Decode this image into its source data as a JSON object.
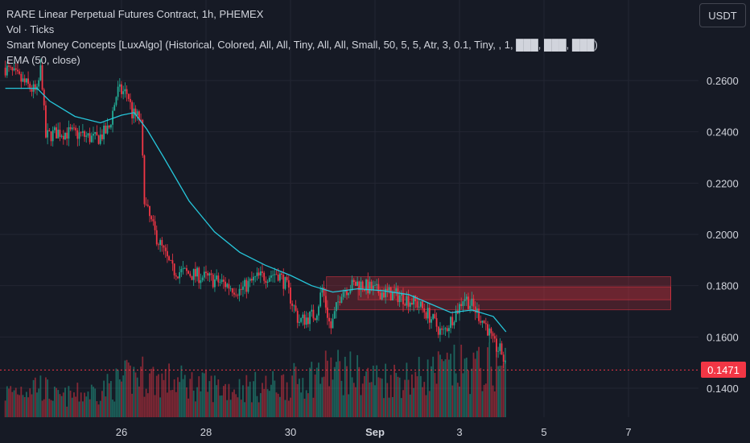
{
  "legend": {
    "title": "RARE Linear Perpetual Futures Contract, 1h, PHEMEX",
    "volume": "Vol · Ticks",
    "smc": "Smart Money Concepts [LuxAlgo] (Historical, Colored, All, All, Tiny, All, All, Small, 50, 5, 5, Atr, 3, 0.1, Tiny, , 1, ███, ███, ███)",
    "ema": "EMA (50, close)"
  },
  "currency_button": "USDT",
  "last_price_label": "0.1471",
  "colors": {
    "background": "#161a25",
    "up": "#22ab94",
    "down": "#f23645",
    "ema": "#26c6da",
    "zone_fill": "#f2364550",
    "grid": "#232632"
  },
  "chart_data": {
    "type": "candlestick",
    "symbol": "RARE Linear Perpetual Futures Contract",
    "interval": "1h",
    "exchange": "PHEMEX",
    "ylim": [
      0.128,
      0.284
    ],
    "yticks": [
      "0.2600",
      "0.2400",
      "0.2200",
      "0.2000",
      "0.1800",
      "0.1600",
      "0.1400"
    ],
    "xticks": [
      {
        "label": "26",
        "day": 26
      },
      {
        "label": "28",
        "day": 28
      },
      {
        "label": "30",
        "day": 30
      },
      {
        "label": "Sep",
        "day": 32
      },
      {
        "label": "3",
        "day": 34
      },
      {
        "label": "5",
        "day": 36
      },
      {
        "label": "7",
        "day": 38
      }
    ],
    "last_price": 0.1471,
    "price_path": [
      {
        "day": 23.25,
        "price": 0.265
      },
      {
        "day": 24.0,
        "price": 0.255
      },
      {
        "day": 24.1,
        "price": 0.266
      },
      {
        "day": 24.2,
        "price": 0.238
      },
      {
        "day": 24.5,
        "price": 0.24
      },
      {
        "day": 25.0,
        "price": 0.239
      },
      {
        "day": 25.4,
        "price": 0.237
      },
      {
        "day": 25.7,
        "price": 0.241
      },
      {
        "day": 25.9,
        "price": 0.256
      },
      {
        "day": 26.15,
        "price": 0.255
      },
      {
        "day": 26.25,
        "price": 0.247
      },
      {
        "day": 26.45,
        "price": 0.245
      },
      {
        "day": 26.55,
        "price": 0.212
      },
      {
        "day": 26.8,
        "price": 0.2
      },
      {
        "day": 27.2,
        "price": 0.186
      },
      {
        "day": 27.8,
        "price": 0.184
      },
      {
        "day": 28.4,
        "price": 0.181
      },
      {
        "day": 28.8,
        "price": 0.178
      },
      {
        "day": 29.2,
        "price": 0.183
      },
      {
        "day": 29.7,
        "price": 0.185
      },
      {
        "day": 29.9,
        "price": 0.18
      },
      {
        "day": 30.2,
        "price": 0.166
      },
      {
        "day": 30.6,
        "price": 0.169
      },
      {
        "day": 30.75,
        "price": 0.179
      },
      {
        "day": 30.95,
        "price": 0.163
      },
      {
        "day": 31.2,
        "price": 0.178
      },
      {
        "day": 31.6,
        "price": 0.181
      },
      {
        "day": 32.0,
        "price": 0.178
      },
      {
        "day": 32.6,
        "price": 0.176
      },
      {
        "day": 33.0,
        "price": 0.173
      },
      {
        "day": 33.3,
        "price": 0.168
      },
      {
        "day": 33.6,
        "price": 0.161
      },
      {
        "day": 33.85,
        "price": 0.168
      },
      {
        "day": 34.0,
        "price": 0.172
      },
      {
        "day": 34.1,
        "price": 0.176
      },
      {
        "day": 34.4,
        "price": 0.17
      },
      {
        "day": 34.65,
        "price": 0.164
      },
      {
        "day": 34.8,
        "price": 0.157
      },
      {
        "day": 35.0,
        "price": 0.154
      },
      {
        "day": 35.1,
        "price": 0.1471
      }
    ],
    "ema_path": [
      {
        "day": 23.25,
        "price": 0.257
      },
      {
        "day": 24.0,
        "price": 0.257
      },
      {
        "day": 24.3,
        "price": 0.252
      },
      {
        "day": 24.9,
        "price": 0.246
      },
      {
        "day": 25.5,
        "price": 0.2435
      },
      {
        "day": 26.0,
        "price": 0.2465
      },
      {
        "day": 26.3,
        "price": 0.2475
      },
      {
        "day": 26.6,
        "price": 0.241
      },
      {
        "day": 27.0,
        "price": 0.23
      },
      {
        "day": 27.6,
        "price": 0.213
      },
      {
        "day": 28.2,
        "price": 0.201
      },
      {
        "day": 28.8,
        "price": 0.193
      },
      {
        "day": 29.4,
        "price": 0.188
      },
      {
        "day": 30.0,
        "price": 0.184
      },
      {
        "day": 30.5,
        "price": 0.18
      },
      {
        "day": 31.0,
        "price": 0.1775
      },
      {
        "day": 31.6,
        "price": 0.1788
      },
      {
        "day": 32.2,
        "price": 0.178
      },
      {
        "day": 32.8,
        "price": 0.1765
      },
      {
        "day": 33.3,
        "price": 0.173
      },
      {
        "day": 33.8,
        "price": 0.1695
      },
      {
        "day": 34.3,
        "price": 0.1705
      },
      {
        "day": 34.8,
        "price": 0.168
      },
      {
        "day": 35.1,
        "price": 0.162
      }
    ],
    "zones": [
      {
        "from_day": 30.85,
        "to_day": 39.0,
        "top": 0.1835,
        "bottom": 0.1706
      },
      {
        "from_day": 31.6,
        "to_day": 39.0,
        "top": 0.1795,
        "bottom": 0.1745
      }
    ],
    "volume_profile": [
      {
        "day": 23.25,
        "v": 0.25
      },
      {
        "day": 24.0,
        "v": 0.35
      },
      {
        "day": 24.5,
        "v": 0.2
      },
      {
        "day": 25.5,
        "v": 0.28
      },
      {
        "day": 26.4,
        "v": 0.45
      },
      {
        "day": 26.8,
        "v": 0.4
      },
      {
        "day": 27.6,
        "v": 0.35
      },
      {
        "day": 28.5,
        "v": 0.3
      },
      {
        "day": 29.5,
        "v": 0.32
      },
      {
        "day": 30.2,
        "v": 0.38
      },
      {
        "day": 31.0,
        "v": 0.5
      },
      {
        "day": 32.0,
        "v": 0.4
      },
      {
        "day": 33.0,
        "v": 0.42
      },
      {
        "day": 33.8,
        "v": 0.5
      },
      {
        "day": 34.5,
        "v": 0.5
      },
      {
        "day": 35.1,
        "v": 0.55
      }
    ]
  }
}
